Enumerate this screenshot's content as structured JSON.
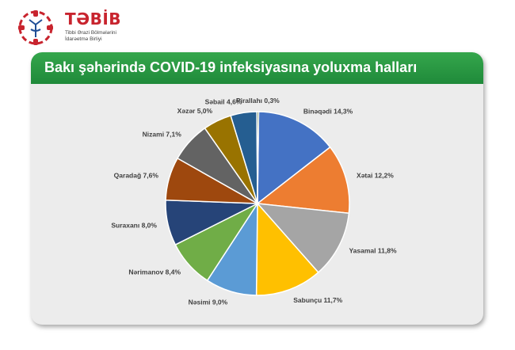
{
  "logo": {
    "name": "TƏBİB",
    "subtitle_lines": [
      "Tibbi Ərazi Bölmələrini",
      "İdarəetmə Birliyi"
    ]
  },
  "banner": {
    "title": "Bakı şəhərində COVID-19 infeksiyasına yoluxma halları"
  },
  "colors": {
    "banner": "#22903d",
    "card_bg": "#ececec",
    "logo_red": "#c8242e"
  },
  "chart_data": {
    "type": "pie",
    "title": "Bakı şəhərində COVID-19 infeksiyasına yoluxma halları",
    "unit": "%",
    "slices": [
      {
        "label": "Binəqədi 14,3%",
        "value": 14.3,
        "color": "#4472c4"
      },
      {
        "label": "Xətai 12,2%",
        "value": 12.2,
        "color": "#ed7d31"
      },
      {
        "label": "Yasamal 11,8%",
        "value": 11.8,
        "color": "#a5a5a5"
      },
      {
        "label": "Sabunçu 11,7%",
        "value": 11.7,
        "color": "#ffc000"
      },
      {
        "label": "Nəsimi 9,0%",
        "value": 9.0,
        "color": "#5b9bd5"
      },
      {
        "label": "Nərimanov 8,4%",
        "value": 8.4,
        "color": "#70ad47"
      },
      {
        "label": "Suraxanı 8,0%",
        "value": 8.0,
        "color": "#264478"
      },
      {
        "label": "Qaradağ 7,6%",
        "value": 7.6,
        "color": "#9e480e"
      },
      {
        "label": "Nizami 7,1%",
        "value": 7.1,
        "color": "#636363"
      },
      {
        "label": "Xəzər 5,0%",
        "value": 5.0,
        "color": "#997300"
      },
      {
        "label": "Səbail 4,6%",
        "value": 4.6,
        "color": "#255e91"
      },
      {
        "label": "Pirallahı 0,3%",
        "value": 0.3,
        "color": "#43682b"
      }
    ]
  }
}
